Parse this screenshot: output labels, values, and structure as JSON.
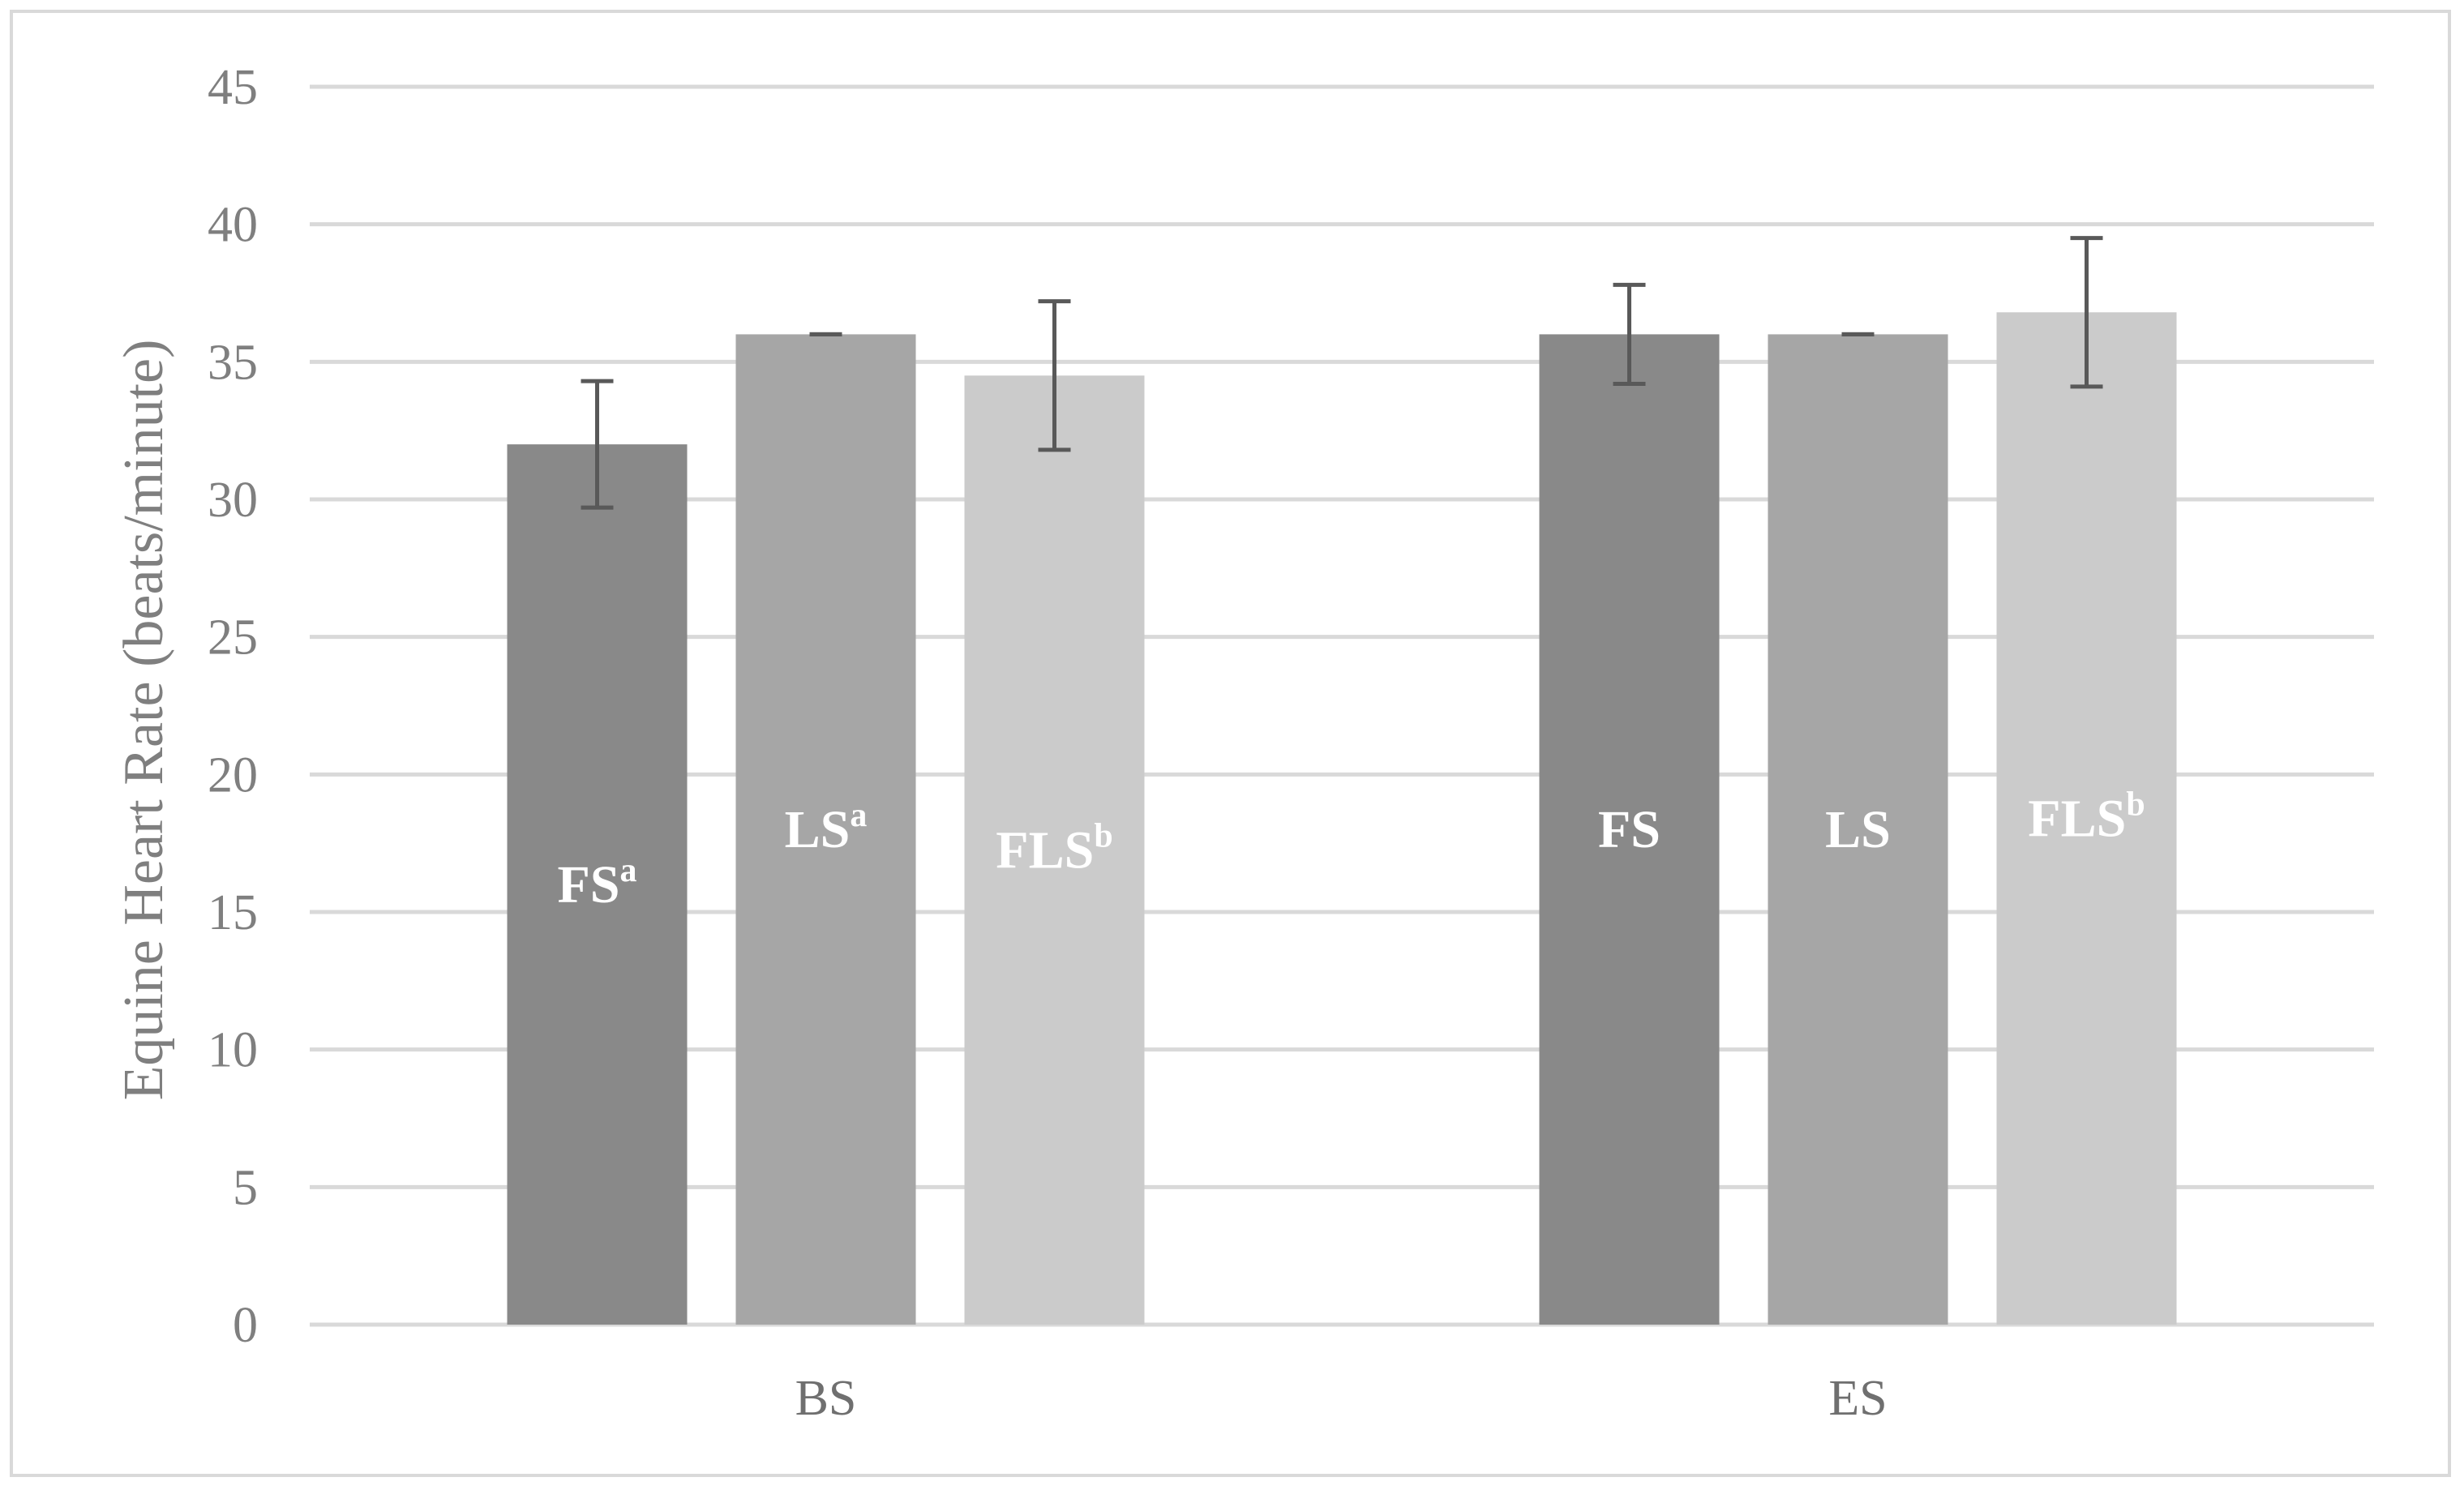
{
  "chart_data": {
    "type": "bar",
    "categories": [
      "BS",
      "ES"
    ],
    "ylabel": "Equine Heart Rate (beats/minute)",
    "xlabel": "",
    "ylim": [
      0,
      45
    ],
    "yticks": [
      0,
      5,
      10,
      15,
      20,
      25,
      30,
      35,
      40,
      45
    ],
    "grid": true,
    "series": [
      {
        "color": "#898989",
        "values": [
          32.0,
          36.0
        ],
        "errors": [
          2.3,
          1.8
        ],
        "labels": [
          {
            "text": "FS",
            "sup": "a"
          },
          {
            "text": "FS",
            "sup": ""
          }
        ]
      },
      {
        "color": "#a6a6a6",
        "values": [
          36.0,
          36.0
        ],
        "errors": [
          0,
          0
        ],
        "labels": [
          {
            "text": "LS",
            "sup": "a"
          },
          {
            "text": "LS",
            "sup": ""
          }
        ]
      },
      {
        "color": "#cbcbcb",
        "values": [
          34.5,
          36.8
        ],
        "errors": [
          2.7,
          2.7
        ],
        "labels": [
          {
            "text": "FLS",
            "sup": "b"
          },
          {
            "text": "FLS",
            "sup": "b"
          }
        ]
      }
    ]
  }
}
